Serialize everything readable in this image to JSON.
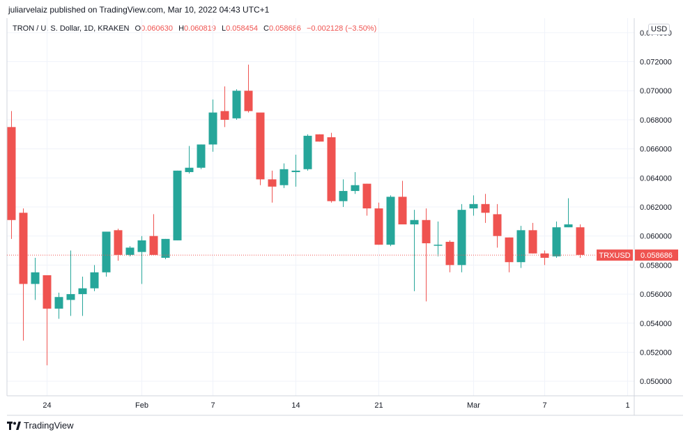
{
  "header": {
    "publisher": "juliarvelaiz published on TradingView.com, Mar 10, 2022 04:43 UTC+1",
    "symbol": "TRON / U. S. Dollar, 1D, KRAKEN",
    "o_label": "O",
    "o_value": "0.060630",
    "h_label": "H",
    "h_value": "0.060819",
    "l_label": "L",
    "l_value": "0.058454",
    "c_label": "C",
    "c_value": "0.058686",
    "change": "−0.002128 (−3.50%)"
  },
  "currency": "USD",
  "footer": {
    "brand": "TradingView"
  },
  "colors": {
    "up": "#26a69a",
    "down": "#ef5350",
    "grid": "#f0f3fa",
    "axis": "#d1d4dc",
    "text": "#131722"
  },
  "chart_data": {
    "type": "candlestick",
    "symbol": "TRXUSD",
    "last_price": 0.058686,
    "last_price_label": "0.058686",
    "ylim": [
      0.049,
      0.075
    ],
    "y_ticks": [
      0.05,
      0.052,
      0.054,
      0.056,
      0.058,
      0.06,
      0.062,
      0.064,
      0.066,
      0.068,
      0.07,
      0.072,
      0.074
    ],
    "y_tick_labels": [
      "0.050000",
      "0.052000",
      "0.054000",
      "0.056000",
      "0.058000",
      "0.060000",
      "0.062000",
      "0.064000",
      "0.066000",
      "0.068000",
      "0.070000",
      "0.072000",
      "0.074000"
    ],
    "x_ticks": [
      {
        "label": "24",
        "index": 3
      },
      {
        "label": "Feb",
        "index": 11
      },
      {
        "label": "7",
        "index": 17
      },
      {
        "label": "14",
        "index": 24
      },
      {
        "label": "21",
        "index": 31
      },
      {
        "label": "Mar",
        "index": 39
      },
      {
        "label": "7",
        "index": 45
      },
      {
        "label": "1",
        "index": 52
      }
    ],
    "candles": [
      {
        "o": 0.0675,
        "h": 0.0686,
        "l": 0.0598,
        "c": 0.0611
      },
      {
        "o": 0.0616,
        "h": 0.0619,
        "l": 0.0528,
        "c": 0.0567
      },
      {
        "o": 0.0567,
        "h": 0.0585,
        "l": 0.0556,
        "c": 0.0575
      },
      {
        "o": 0.0573,
        "h": 0.0573,
        "l": 0.0511,
        "c": 0.055
      },
      {
        "o": 0.055,
        "h": 0.0561,
        "l": 0.0543,
        "c": 0.0558
      },
      {
        "o": 0.0556,
        "h": 0.059,
        "l": 0.0545,
        "c": 0.056
      },
      {
        "o": 0.056,
        "h": 0.0572,
        "l": 0.0545,
        "c": 0.0564
      },
      {
        "o": 0.0564,
        "h": 0.058,
        "l": 0.0562,
        "c": 0.0575
      },
      {
        "o": 0.0575,
        "h": 0.0603,
        "l": 0.0572,
        "c": 0.0603
      },
      {
        "o": 0.0604,
        "h": 0.0605,
        "l": 0.0583,
        "c": 0.0587
      },
      {
        "o": 0.0587,
        "h": 0.0593,
        "l": 0.0586,
        "c": 0.0592
      },
      {
        "o": 0.0589,
        "h": 0.06,
        "l": 0.0567,
        "c": 0.0597
      },
      {
        "o": 0.06,
        "h": 0.0615,
        "l": 0.0587,
        "c": 0.0587
      },
      {
        "o": 0.0585,
        "h": 0.0598,
        "l": 0.0584,
        "c": 0.0598
      },
      {
        "o": 0.0597,
        "h": 0.0645,
        "l": 0.0597,
        "c": 0.0645
      },
      {
        "o": 0.0644,
        "h": 0.0662,
        "l": 0.0643,
        "c": 0.0647
      },
      {
        "o": 0.0647,
        "h": 0.0663,
        "l": 0.0646,
        "c": 0.0663
      },
      {
        "o": 0.0663,
        "h": 0.0694,
        "l": 0.0658,
        "c": 0.0685
      },
      {
        "o": 0.0686,
        "h": 0.0703,
        "l": 0.0675,
        "c": 0.068
      },
      {
        "o": 0.0681,
        "h": 0.0701,
        "l": 0.068,
        "c": 0.07
      },
      {
        "o": 0.07,
        "h": 0.0718,
        "l": 0.0685,
        "c": 0.0686
      },
      {
        "o": 0.0685,
        "h": 0.0685,
        "l": 0.0635,
        "c": 0.0639
      },
      {
        "o": 0.0639,
        "h": 0.0645,
        "l": 0.0623,
        "c": 0.0634
      },
      {
        "o": 0.0635,
        "h": 0.065,
        "l": 0.0633,
        "c": 0.0646
      },
      {
        "o": 0.0644,
        "h": 0.0656,
        "l": 0.0634,
        "c": 0.0645
      },
      {
        "o": 0.0646,
        "h": 0.067,
        "l": 0.0645,
        "c": 0.0669
      },
      {
        "o": 0.067,
        "h": 0.067,
        "l": 0.0665,
        "c": 0.0665
      },
      {
        "o": 0.0668,
        "h": 0.0671,
        "l": 0.0623,
        "c": 0.0624
      },
      {
        "o": 0.0624,
        "h": 0.0639,
        "l": 0.062,
        "c": 0.0631
      },
      {
        "o": 0.0631,
        "h": 0.0644,
        "l": 0.0629,
        "c": 0.0635
      },
      {
        "o": 0.0636,
        "h": 0.0636,
        "l": 0.0614,
        "c": 0.0619
      },
      {
        "o": 0.0619,
        "h": 0.0623,
        "l": 0.0594,
        "c": 0.0594
      },
      {
        "o": 0.0594,
        "h": 0.0628,
        "l": 0.0593,
        "c": 0.0627
      },
      {
        "o": 0.0627,
        "h": 0.0638,
        "l": 0.0608,
        "c": 0.0608
      },
      {
        "o": 0.0608,
        "h": 0.0618,
        "l": 0.0562,
        "c": 0.0611
      },
      {
        "o": 0.0611,
        "h": 0.0619,
        "l": 0.0555,
        "c": 0.0595
      },
      {
        "o": 0.0594,
        "h": 0.061,
        "l": 0.0586,
        "c": 0.0594
      },
      {
        "o": 0.0596,
        "h": 0.0597,
        "l": 0.0575,
        "c": 0.058
      },
      {
        "o": 0.058,
        "h": 0.0622,
        "l": 0.0575,
        "c": 0.0618
      },
      {
        "o": 0.0619,
        "h": 0.0628,
        "l": 0.0614,
        "c": 0.0622
      },
      {
        "o": 0.0622,
        "h": 0.0629,
        "l": 0.0609,
        "c": 0.0616
      },
      {
        "o": 0.0615,
        "h": 0.0622,
        "l": 0.0592,
        "c": 0.06
      },
      {
        "o": 0.0599,
        "h": 0.0599,
        "l": 0.0575,
        "c": 0.0582
      },
      {
        "o": 0.0582,
        "h": 0.0607,
        "l": 0.0578,
        "c": 0.0604
      },
      {
        "o": 0.0604,
        "h": 0.0609,
        "l": 0.0588,
        "c": 0.0588
      },
      {
        "o": 0.0588,
        "h": 0.059,
        "l": 0.058,
        "c": 0.0585
      },
      {
        "o": 0.0586,
        "h": 0.061,
        "l": 0.0585,
        "c": 0.0606
      },
      {
        "o": 0.0606,
        "h": 0.0626,
        "l": 0.0606,
        "c": 0.0608
      },
      {
        "o": 0.0606,
        "h": 0.0608,
        "l": 0.0585,
        "c": 0.0587
      }
    ]
  }
}
